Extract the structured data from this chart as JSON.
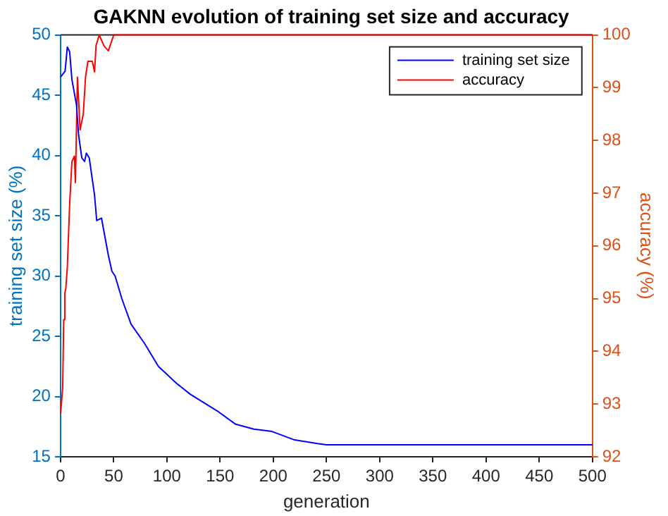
{
  "chart_data": {
    "type": "line",
    "title": "GAKNN evolution of training set size and accuracy",
    "xlabel": "generation",
    "ylabel": "training set size (%)",
    "y2label": "accuracy (%)",
    "xlim": [
      0,
      500
    ],
    "xticks": [
      0,
      50,
      100,
      150,
      200,
      250,
      300,
      350,
      400,
      450,
      500
    ],
    "ylim": [
      15,
      50
    ],
    "yticks": [
      15,
      20,
      25,
      30,
      35,
      40,
      45,
      50
    ],
    "y2lim": [
      92,
      100
    ],
    "y2ticks": [
      92,
      93,
      94,
      95,
      96,
      97,
      98,
      99,
      100
    ],
    "legend": "top right",
    "series": [
      {
        "name": "training set size",
        "color": "#0000ff",
        "x": [
          0,
          4.3,
          6.4,
          8.6,
          10.7,
          15,
          17,
          20,
          22.6,
          24.3,
          27,
          32,
          34,
          38.5,
          45,
          48.3,
          51.3,
          57.7,
          66.3,
          79,
          92,
          109,
          121.8,
          147.4,
          164.6,
          181.7,
          198.8,
          220,
          241.5,
          250,
          500
        ],
        "values": [
          46.5,
          47.0,
          49.0,
          48.6,
          46.3,
          44.2,
          41.7,
          39.8,
          39.5,
          40.2,
          39.8,
          36.7,
          34.6,
          34.8,
          31.7,
          30.4,
          30.0,
          28.1,
          26.0,
          24.4,
          22.5,
          21.1,
          20.2,
          18.8,
          17.7,
          17.3,
          17.1,
          16.4,
          16.1,
          16.0,
          16.0
        ]
      },
      {
        "name": "accuracy",
        "color": "#ff0000",
        "axis": "y2",
        "x": [
          0,
          2,
          3,
          4,
          5,
          6.4,
          8.6,
          10.7,
          13,
          14,
          15.9,
          18.4,
          21.4,
          23.5,
          25.7,
          29.9,
          32,
          33.4,
          36.4,
          40.7,
          45,
          48.3,
          50,
          500
        ],
        "values": [
          92.8,
          93.3,
          94.6,
          95.1,
          95.2,
          95.6,
          96.8,
          97.6,
          97.7,
          97.2,
          99.2,
          98.2,
          98.5,
          99.2,
          99.5,
          99.5,
          99.3,
          99.8,
          100,
          99.8,
          99.7,
          99.9,
          100,
          100
        ]
      }
    ]
  }
}
